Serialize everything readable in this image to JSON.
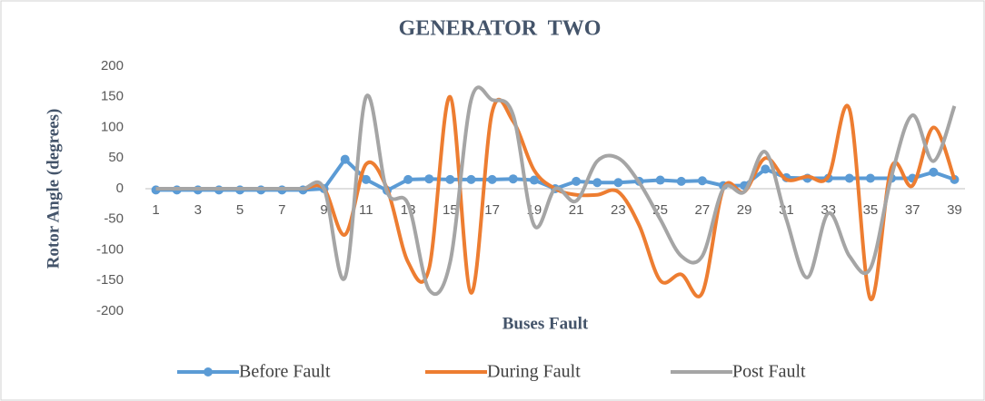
{
  "chart_data": {
    "type": "line",
    "title": "GENERATOR  TWO",
    "x_label": "Buses Fault",
    "y_label": "Rotor Angle (degrees)",
    "categories": [
      1,
      null,
      3,
      null,
      5,
      null,
      7,
      null,
      9,
      null,
      11,
      null,
      13,
      null,
      15,
      null,
      17,
      null,
      19,
      null,
      21,
      null,
      23,
      null,
      25,
      null,
      27,
      null,
      29,
      null,
      31,
      null,
      33,
      null,
      35,
      null,
      37,
      null,
      39
    ],
    "ylim": [
      -200,
      200
    ],
    "yticks": [
      -200,
      -150,
      -100,
      -50,
      0,
      50,
      100,
      150,
      200
    ],
    "grid": false,
    "legend": "bottom",
    "series": [
      {
        "name": "Before Fault",
        "color": "#5b9bd5",
        "marker": "circle",
        "smooth": false,
        "values": [
          -2,
          -2,
          -2,
          -2,
          -2,
          -2,
          -2,
          -2,
          0,
          48,
          15,
          -3,
          15,
          16,
          15,
          15,
          15,
          16,
          14,
          0,
          12,
          10,
          10,
          12,
          14,
          12,
          13,
          5,
          5,
          32,
          18,
          17,
          17,
          17,
          17,
          17,
          17,
          27,
          15
        ]
      },
      {
        "name": "During Fault",
        "color": "#ed7d31",
        "marker": "none",
        "smooth": true,
        "values": [
          0,
          0,
          0,
          0,
          0,
          0,
          0,
          0,
          0,
          -75,
          40,
          0,
          -120,
          -130,
          150,
          -170,
          125,
          110,
          30,
          0,
          -10,
          -10,
          -5,
          -60,
          -150,
          -140,
          -170,
          0,
          -5,
          50,
          15,
          20,
          20,
          130,
          -180,
          35,
          5,
          100,
          15
        ]
      },
      {
        "name": "Post Fault",
        "color": "#a5a5a5",
        "marker": "none",
        "smooth": true,
        "values": [
          0,
          0,
          0,
          0,
          0,
          0,
          0,
          0,
          0,
          -145,
          150,
          -5,
          -25,
          -165,
          -120,
          145,
          145,
          120,
          -60,
          0,
          -20,
          45,
          50,
          10,
          -50,
          -110,
          -110,
          0,
          -5,
          60,
          -50,
          -145,
          -40,
          -110,
          -130,
          20,
          120,
          45,
          135
        ]
      }
    ]
  }
}
